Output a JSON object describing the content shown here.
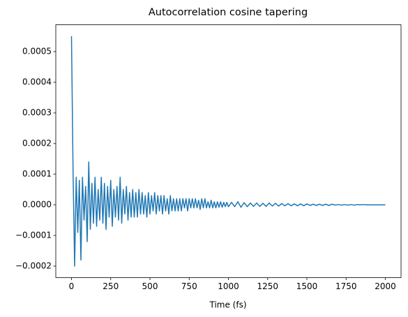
{
  "chart_data": {
    "type": "line",
    "title": "Autocorrelation cosine tapering",
    "xlabel": "Time (fs)",
    "color": "#1f77b4",
    "x": [
      0,
      10,
      20,
      30,
      40,
      50,
      60,
      70,
      80,
      90,
      100,
      110,
      120,
      130,
      140,
      150,
      160,
      170,
      180,
      190,
      200,
      210,
      220,
      230,
      240,
      250,
      260,
      270,
      280,
      290,
      300,
      310,
      320,
      330,
      340,
      350,
      360,
      370,
      380,
      390,
      400,
      410,
      420,
      430,
      440,
      450,
      460,
      470,
      480,
      490,
      500,
      510,
      520,
      530,
      540,
      550,
      560,
      570,
      580,
      590,
      600,
      610,
      620,
      630,
      640,
      650,
      660,
      670,
      680,
      690,
      700,
      710,
      720,
      730,
      740,
      750,
      760,
      770,
      780,
      790,
      800,
      810,
      820,
      830,
      840,
      850,
      860,
      870,
      880,
      890,
      900,
      910,
      920,
      930,
      940,
      950,
      960,
      970,
      980,
      990,
      1000,
      1020,
      1040,
      1060,
      1080,
      1100,
      1120,
      1140,
      1160,
      1180,
      1200,
      1220,
      1240,
      1260,
      1280,
      1300,
      1320,
      1340,
      1360,
      1380,
      1400,
      1420,
      1440,
      1460,
      1480,
      1500,
      1520,
      1540,
      1560,
      1580,
      1600,
      1620,
      1640,
      1660,
      1680,
      1700,
      1720,
      1740,
      1760,
      1780,
      1800,
      1820,
      1840,
      1860,
      1880,
      1900,
      1920,
      1940,
      1960,
      1980,
      2000
    ],
    "values": [
      0.00055,
      0.00011,
      -0.0002,
      9e-05,
      -9e-05,
      8e-05,
      -0.00018,
      9e-05,
      -5e-05,
      6e-05,
      -0.00012,
      0.00014,
      -8e-05,
      7e-05,
      -6e-05,
      9e-05,
      -7e-05,
      5e-05,
      -5e-05,
      9e-05,
      -6e-05,
      7e-05,
      -8e-05,
      6e-05,
      -4e-05,
      8e-05,
      -7e-05,
      5e-05,
      -4e-05,
      6e-05,
      -5e-05,
      9e-05,
      -6e-05,
      5e-05,
      -3e-05,
      6e-05,
      -5e-05,
      4e-05,
      -4e-05,
      5e-05,
      -4e-05,
      4e-05,
      -4e-05,
      5e-05,
      -3e-05,
      4e-05,
      -3e-05,
      3e-05,
      -4e-05,
      4e-05,
      -3e-05,
      3e-05,
      -2e-05,
      4e-05,
      -3e-05,
      3e-05,
      -2e-05,
      3e-05,
      -3e-05,
      3e-05,
      -2e-05,
      2e-05,
      -3e-05,
      3e-05,
      -2e-05,
      2e-05,
      -2e-05,
      2e-05,
      -2e-05,
      2e-05,
      -2e-05,
      2e-05,
      -1e-05,
      2e-05,
      -2e-05,
      2e-05,
      -1e-05,
      2e-05,
      -1e-05,
      2e-05,
      -1e-05,
      1.5e-05,
      -1.5e-05,
      2e-05,
      -1e-05,
      2e-05,
      -1e-05,
      1e-05,
      -1e-05,
      1.5e-05,
      -1e-05,
      1e-05,
      -1e-05,
      1e-05,
      -8e-06,
      1e-05,
      -8e-06,
      8e-06,
      -6e-06,
      8e-06,
      -6e-06,
      8e-06,
      -6e-06,
      1e-05,
      -8e-06,
      7e-06,
      -6e-06,
      6e-06,
      -5e-06,
      6e-06,
      -5e-06,
      5e-06,
      -5e-06,
      6e-06,
      -4e-06,
      5e-06,
      -4e-06,
      4e-06,
      -3e-06,
      4e-06,
      -3e-06,
      3e-06,
      -3e-06,
      3e-06,
      -3e-06,
      3e-06,
      -2e-06,
      2e-06,
      -2e-06,
      2e-06,
      -2e-06,
      2e-06,
      -2e-06,
      2e-06,
      -1e-06,
      1e-06,
      -1e-06,
      1e-06,
      -1e-06,
      1e-06,
      -1e-06,
      1e-06,
      0,
      1e-06,
      0,
      0,
      0,
      0,
      0,
      0,
      0
    ],
    "xlim": [
      -100,
      2100
    ],
    "xticks": [
      0,
      250,
      500,
      750,
      1000,
      1250,
      1500,
      1750,
      2000
    ],
    "ylim": [
      -0.0002375,
      0.0005875
    ],
    "yticks": [
      {
        "value": -0.0002,
        "label": "−0.0002"
      },
      {
        "value": -0.0001,
        "label": "−0.0001"
      },
      {
        "value": 0,
        "label": "0.0000"
      },
      {
        "value": 0.0001,
        "label": "0.0001"
      },
      {
        "value": 0.0002,
        "label": "0.0002"
      },
      {
        "value": 0.0003,
        "label": "0.0003"
      },
      {
        "value": 0.0004,
        "label": "0.0004"
      },
      {
        "value": 0.0005,
        "label": "0.0005"
      }
    ]
  }
}
